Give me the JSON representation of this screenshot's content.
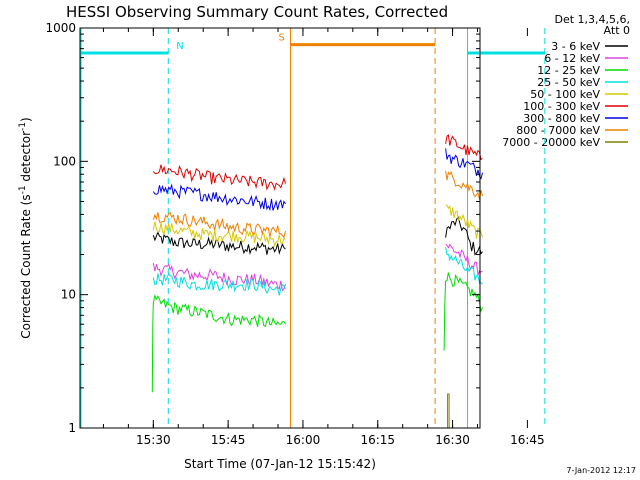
{
  "chart_data": {
    "type": "line",
    "title": "HESSI Observing Summary Count Rates, Corrected",
    "xlabel": "Start Time (07-Jan-12 15:15:42)",
    "ylabel_main": "Corrected Count Rate (s",
    "ylabel_sup1": "-1",
    "ylabel_mid": " detector",
    "ylabel_sup2": "-1",
    "ylabel_end": ")",
    "yscale": "log",
    "ylim": [
      1,
      1000
    ],
    "xlim_minutes": [
      15.3,
      95.5
    ],
    "x_ticks": [
      {
        "label": "15:30",
        "t": 30
      },
      {
        "label": "15:45",
        "t": 45
      },
      {
        "label": "16:00",
        "t": 60
      },
      {
        "label": "16:15",
        "t": 75
      },
      {
        "label": "16:30",
        "t": 90
      },
      {
        "label": "16:45",
        "t": 105
      }
    ],
    "y_ticks": [
      {
        "label": "1",
        "v": 1
      },
      {
        "label": "10",
        "v": 10
      },
      {
        "label": "100",
        "v": 100
      },
      {
        "label": "1000",
        "v": 1000
      }
    ],
    "legend_header": [
      "Det 1,3,4,5,6,",
      "Att 0"
    ],
    "legend_position": "right",
    "series": [
      {
        "name": "3 - 6 keV",
        "color": "#000000",
        "segments": [
          {
            "x": [
              30,
              34,
              38,
              42,
              46,
              50,
              54,
              56.5
            ],
            "y": [
              27,
              25,
              24,
              24,
              23,
              23,
              22,
              22
            ]
          },
          {
            "x": [
              88.6,
              89.5,
              90.5,
              91.5,
              92.5,
              93.5,
              94.5,
              96
            ],
            "y": [
              30,
              32,
              35,
              34,
              30,
              24,
              22,
              21
            ]
          }
        ]
      },
      {
        "name": "6 - 12 keV",
        "color": "#e040e0",
        "segments": [
          {
            "x": [
              30,
              34,
              38,
              42,
              46,
              50,
              54,
              56.5
            ],
            "y": [
              16,
              15,
              14,
              14,
              13,
              13,
              12,
              12
            ]
          },
          {
            "x": [
              88.6,
              90,
              91.5,
              93,
              94.5,
              96
            ],
            "y": [
              24,
              22,
              20,
              18,
              16,
              15
            ]
          }
        ]
      },
      {
        "name": "12 - 25 keV",
        "color": "#00dd00",
        "segments": [
          {
            "x": [
              29.8,
              30,
              34,
              38,
              42,
              46,
              50,
              54,
              56.5
            ],
            "y": [
              2,
              9,
              8,
              7.5,
              7,
              6.5,
              6.5,
              6,
              6
            ]
          },
          {
            "x": [
              88.3,
              88.6,
              90,
              91.5,
              93,
              94.5,
              96
            ],
            "y": [
              4,
              14,
              13,
              12,
              11,
              10,
              8
            ]
          }
        ]
      },
      {
        "name": "25 - 50 keV",
        "color": "#00e0e0",
        "segments": [
          {
            "x": [
              30,
              34,
              38,
              42,
              46,
              50,
              54,
              56.5
            ],
            "y": [
              13,
              13,
              12,
              12,
              12,
              12,
              11,
              11
            ]
          },
          {
            "x": [
              88.6,
              90,
              91.5,
              93,
              94.5,
              96
            ],
            "y": [
              21,
              19,
              17,
              15,
              14,
              12
            ]
          }
        ]
      },
      {
        "name": "50 - 100 keV",
        "color": "#d8c800",
        "segments": [
          {
            "x": [
              30,
              34,
              38,
              42,
              46,
              50,
              54,
              56.5
            ],
            "y": [
              33,
              31,
              29,
              28,
              28,
              27,
              26,
              26
            ]
          },
          {
            "x": [
              88.6,
              90,
              91.5,
              93,
              94.5,
              96
            ],
            "y": [
              44,
              42,
              38,
              34,
              30,
              27
            ]
          }
        ]
      },
      {
        "name": "100 - 300 keV",
        "color": "#e00000",
        "segments": [
          {
            "x": [
              30,
              34,
              38,
              42,
              46,
              50,
              54,
              56.5
            ],
            "y": [
              88,
              85,
              80,
              75,
              72,
              70,
              68,
              68
            ]
          },
          {
            "x": [
              88.6,
              90,
              91.5,
              93,
              94.5,
              96
            ],
            "y": [
              150,
              140,
              130,
              120,
              112,
              105
            ]
          }
        ]
      },
      {
        "name": "300 - 800 keV",
        "color": "#0000e0",
        "segments": [
          {
            "x": [
              30,
              34,
              38,
              42,
              46,
              50,
              54,
              56.5
            ],
            "y": [
              63,
              60,
              58,
              55,
              52,
              50,
              48,
              48
            ]
          },
          {
            "x": [
              88.6,
              90,
              91.5,
              93,
              94.5,
              96
            ],
            "y": [
              115,
              105,
              100,
              95,
              88,
              82
            ]
          }
        ]
      },
      {
        "name": "800 - 7000 keV",
        "color": "#f08000",
        "segments": [
          {
            "x": [
              30,
              34,
              38,
              42,
              46,
              50,
              54,
              56.5
            ],
            "y": [
              40,
              38,
              36,
              34,
              32,
              31,
              30,
              30
            ]
          },
          {
            "x": [
              88.6,
              90,
              91.5,
              93,
              94.5,
              96
            ],
            "y": [
              80,
              75,
              70,
              65,
              60,
              55
            ]
          }
        ]
      },
      {
        "name": "7000 - 20000 keV",
        "color": "#808000",
        "segments": [
          {
            "x": [
              88.6,
              89.0,
              89.0,
              89.3,
              89.3,
              89.6
            ],
            "y": [
              1,
              1,
              1.8,
              1.8,
              1,
              1
            ]
          }
        ]
      }
    ],
    "annotations": [
      {
        "label": "N",
        "color": "#00e0e0",
        "level": 650,
        "x_start": 15.3,
        "x_end": 33,
        "line_x": 33,
        "style": "dashed"
      },
      {
        "label": "S",
        "color": "#f08000",
        "level": 750,
        "x_start": 57.5,
        "x_end": 86.5,
        "line_x": 57.5,
        "line_x2": 86.5,
        "style": "solid-dashed"
      },
      {
        "label": "",
        "color": "#00e0e0",
        "level": 650,
        "x_start": 93,
        "x_end": 108.5,
        "line_x": 93,
        "line_x2": 108.5,
        "style": "solid-dashed"
      }
    ]
  },
  "footer": {
    "timestamp": "7-Jan-2012 12:17"
  }
}
